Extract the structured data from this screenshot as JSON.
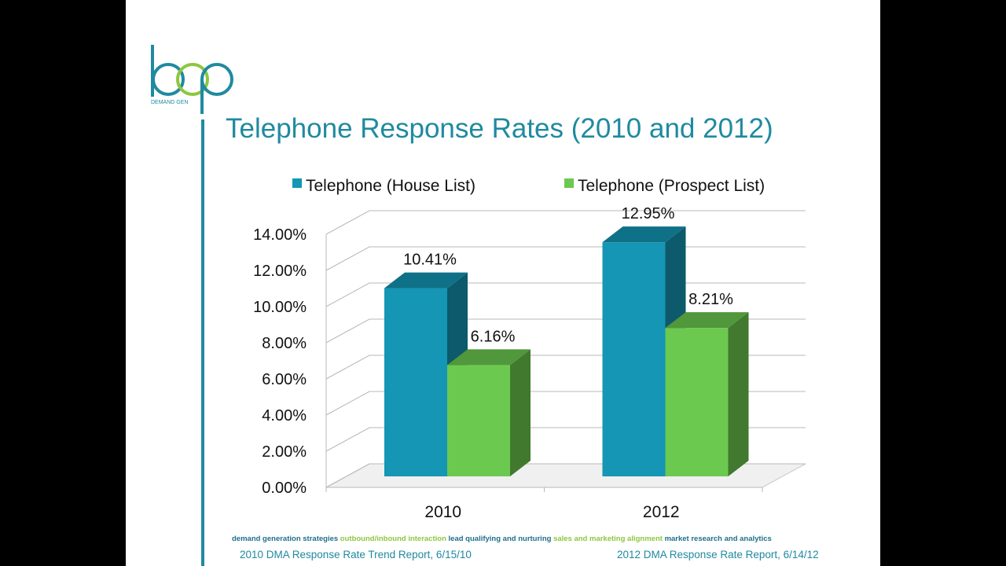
{
  "slide": {
    "title": "Telephone Response Rates (2010 and 2012)",
    "logo": {
      "wordmark": "loop",
      "tagline": "DEMAND GEN",
      "colors": {
        "teal": "#1f8aa0",
        "green": "#8dc63f"
      }
    }
  },
  "chart_data": {
    "type": "bar",
    "style": "3d-clustered-column",
    "categories": [
      "2010",
      "2012"
    ],
    "series": [
      {
        "name": "Telephone (House List)",
        "values": [
          10.41,
          12.95
        ],
        "labels": [
          "10.41%",
          "12.95%"
        ],
        "color": "#1496b4"
      },
      {
        "name": "Telephone (Prospect List)",
        "values": [
          6.16,
          8.21
        ],
        "labels": [
          "6.16%",
          "8.21%"
        ],
        "color": "#6cc94f"
      }
    ],
    "y_ticks": [
      "0.00%",
      "2.00%",
      "4.00%",
      "6.00%",
      "8.00%",
      "10.00%",
      "12.00%",
      "14.00%"
    ],
    "ylim": [
      0,
      14
    ],
    "grid": true,
    "legend": "top"
  },
  "footer": {
    "tagline": [
      {
        "text": "demand generation strategies ",
        "color": "teal"
      },
      {
        "text": "outbound/inbound interaction ",
        "color": "green"
      },
      {
        "text": "lead qualifying and nurturing ",
        "color": "teal"
      },
      {
        "text": "sales and marketing alignment ",
        "color": "green"
      },
      {
        "text": "market research and analytics",
        "color": "teal"
      }
    ],
    "source_left": "2010 DMA Response Rate Trend Report, 6/15/10",
    "source_right": "2012 DMA Response Rate Report, 6/14/12"
  }
}
